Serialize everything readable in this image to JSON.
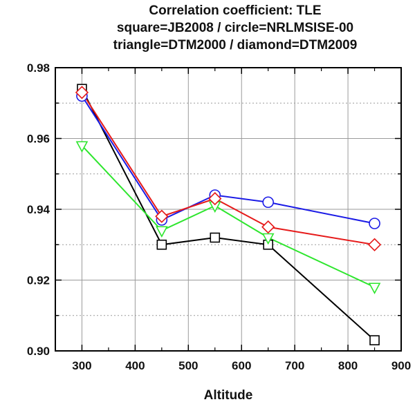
{
  "chart_data": {
    "type": "line",
    "title_lines": [
      "Correlation coefficient: TLE",
      "square=JB2008 / circle=NRLMSISE-00",
      "triangle=DTM2000 / diamond=DTM2009"
    ],
    "xlabel": "Altitude",
    "ylabel": "",
    "xlim": [
      250,
      900
    ],
    "ylim": [
      0.9,
      0.98
    ],
    "x_ticks": [
      300,
      400,
      500,
      600,
      700,
      800,
      900
    ],
    "y_ticks": [
      0.9,
      0.92,
      0.94,
      0.96,
      0.98
    ],
    "x_tick_labels": [
      "300",
      "400",
      "500",
      "600",
      "700",
      "800",
      "900"
    ],
    "y_tick_labels": [
      "0.90",
      "0.92",
      "0.94",
      "0.96",
      "0.98"
    ],
    "grid": true,
    "x": [
      300,
      450,
      550,
      650,
      850
    ],
    "series": [
      {
        "name": "JB2008",
        "marker": "square",
        "color": "#000000",
        "values": [
          0.974,
          0.93,
          0.932,
          0.93,
          0.903
        ]
      },
      {
        "name": "NRLMSISE-00",
        "marker": "circle",
        "color": "#1a1ae6",
        "values": [
          0.972,
          0.937,
          0.944,
          0.942,
          0.936
        ]
      },
      {
        "name": "DTM2000",
        "marker": "triangle",
        "color": "#2ee62e",
        "values": [
          0.958,
          0.934,
          0.941,
          0.932,
          0.918
        ]
      },
      {
        "name": "DTM2009",
        "marker": "diamond",
        "color": "#e61a1a",
        "values": [
          0.973,
          0.938,
          0.943,
          0.935,
          0.93
        ]
      }
    ]
  }
}
